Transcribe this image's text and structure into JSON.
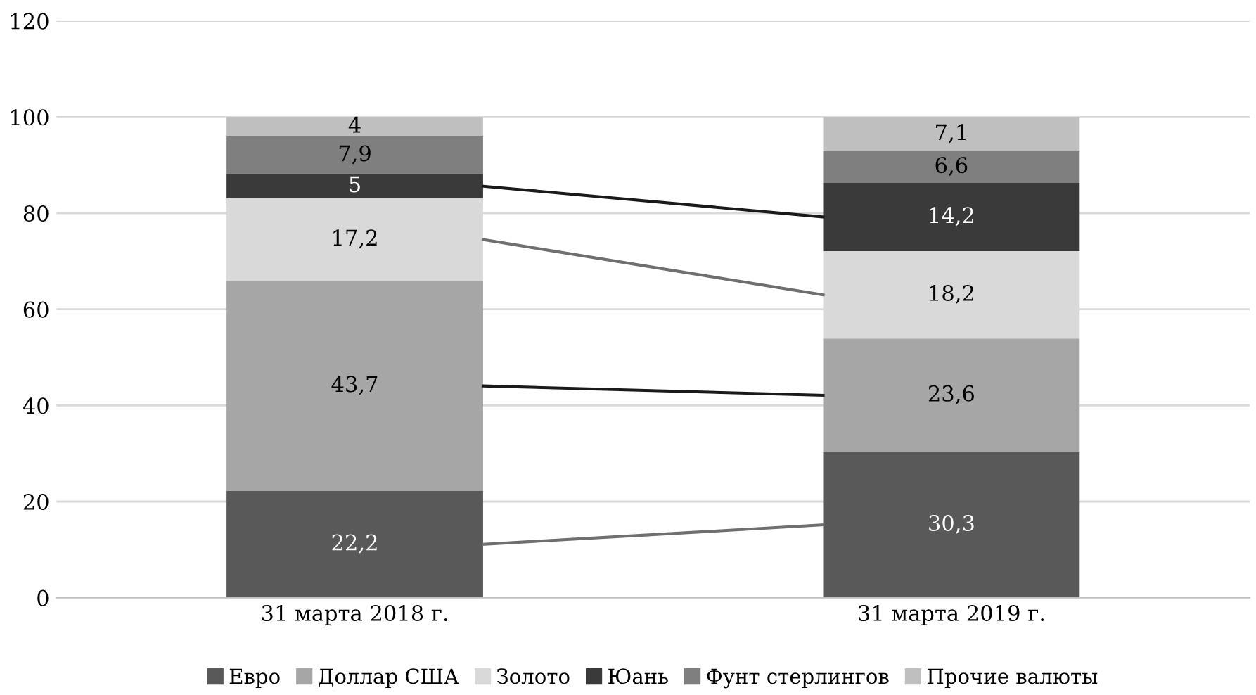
{
  "chart_data": {
    "type": "bar",
    "stacked": true,
    "categories": [
      "31 марта 2018 г.",
      "31 марта 2019 г."
    ],
    "series": [
      {
        "name": "Евро",
        "color": "#595959",
        "values": [
          22.2,
          30.3
        ],
        "value_labels": [
          "22,2",
          "30,3"
        ]
      },
      {
        "name": "Доллар США",
        "color": "#a6a6a6",
        "values": [
          43.7,
          23.6
        ],
        "value_labels": [
          "43,7",
          "23,6"
        ]
      },
      {
        "name": "Золото",
        "color": "#d9d9d9",
        "values": [
          17.2,
          18.2
        ],
        "value_labels": [
          "17,2",
          "18,2"
        ]
      },
      {
        "name": "Юань",
        "color": "#3a3a3a",
        "values": [
          5,
          14.2
        ],
        "value_labels": [
          "5",
          "14,2"
        ]
      },
      {
        "name": "Фунт стерлингов",
        "color": "#7f7f7f",
        "values": [
          7.9,
          6.6
        ],
        "value_labels": [
          "7,9",
          "6,6"
        ]
      },
      {
        "name": "Прочие валюты",
        "color": "#bfbfbf",
        "values": [
          4,
          7.1
        ],
        "value_labels": [
          "4",
          "7,1"
        ]
      }
    ],
    "ylim": [
      0,
      120
    ],
    "yticks": [
      0,
      20,
      40,
      60,
      80,
      100,
      120
    ],
    "grid": "y",
    "legend": "bottom"
  }
}
